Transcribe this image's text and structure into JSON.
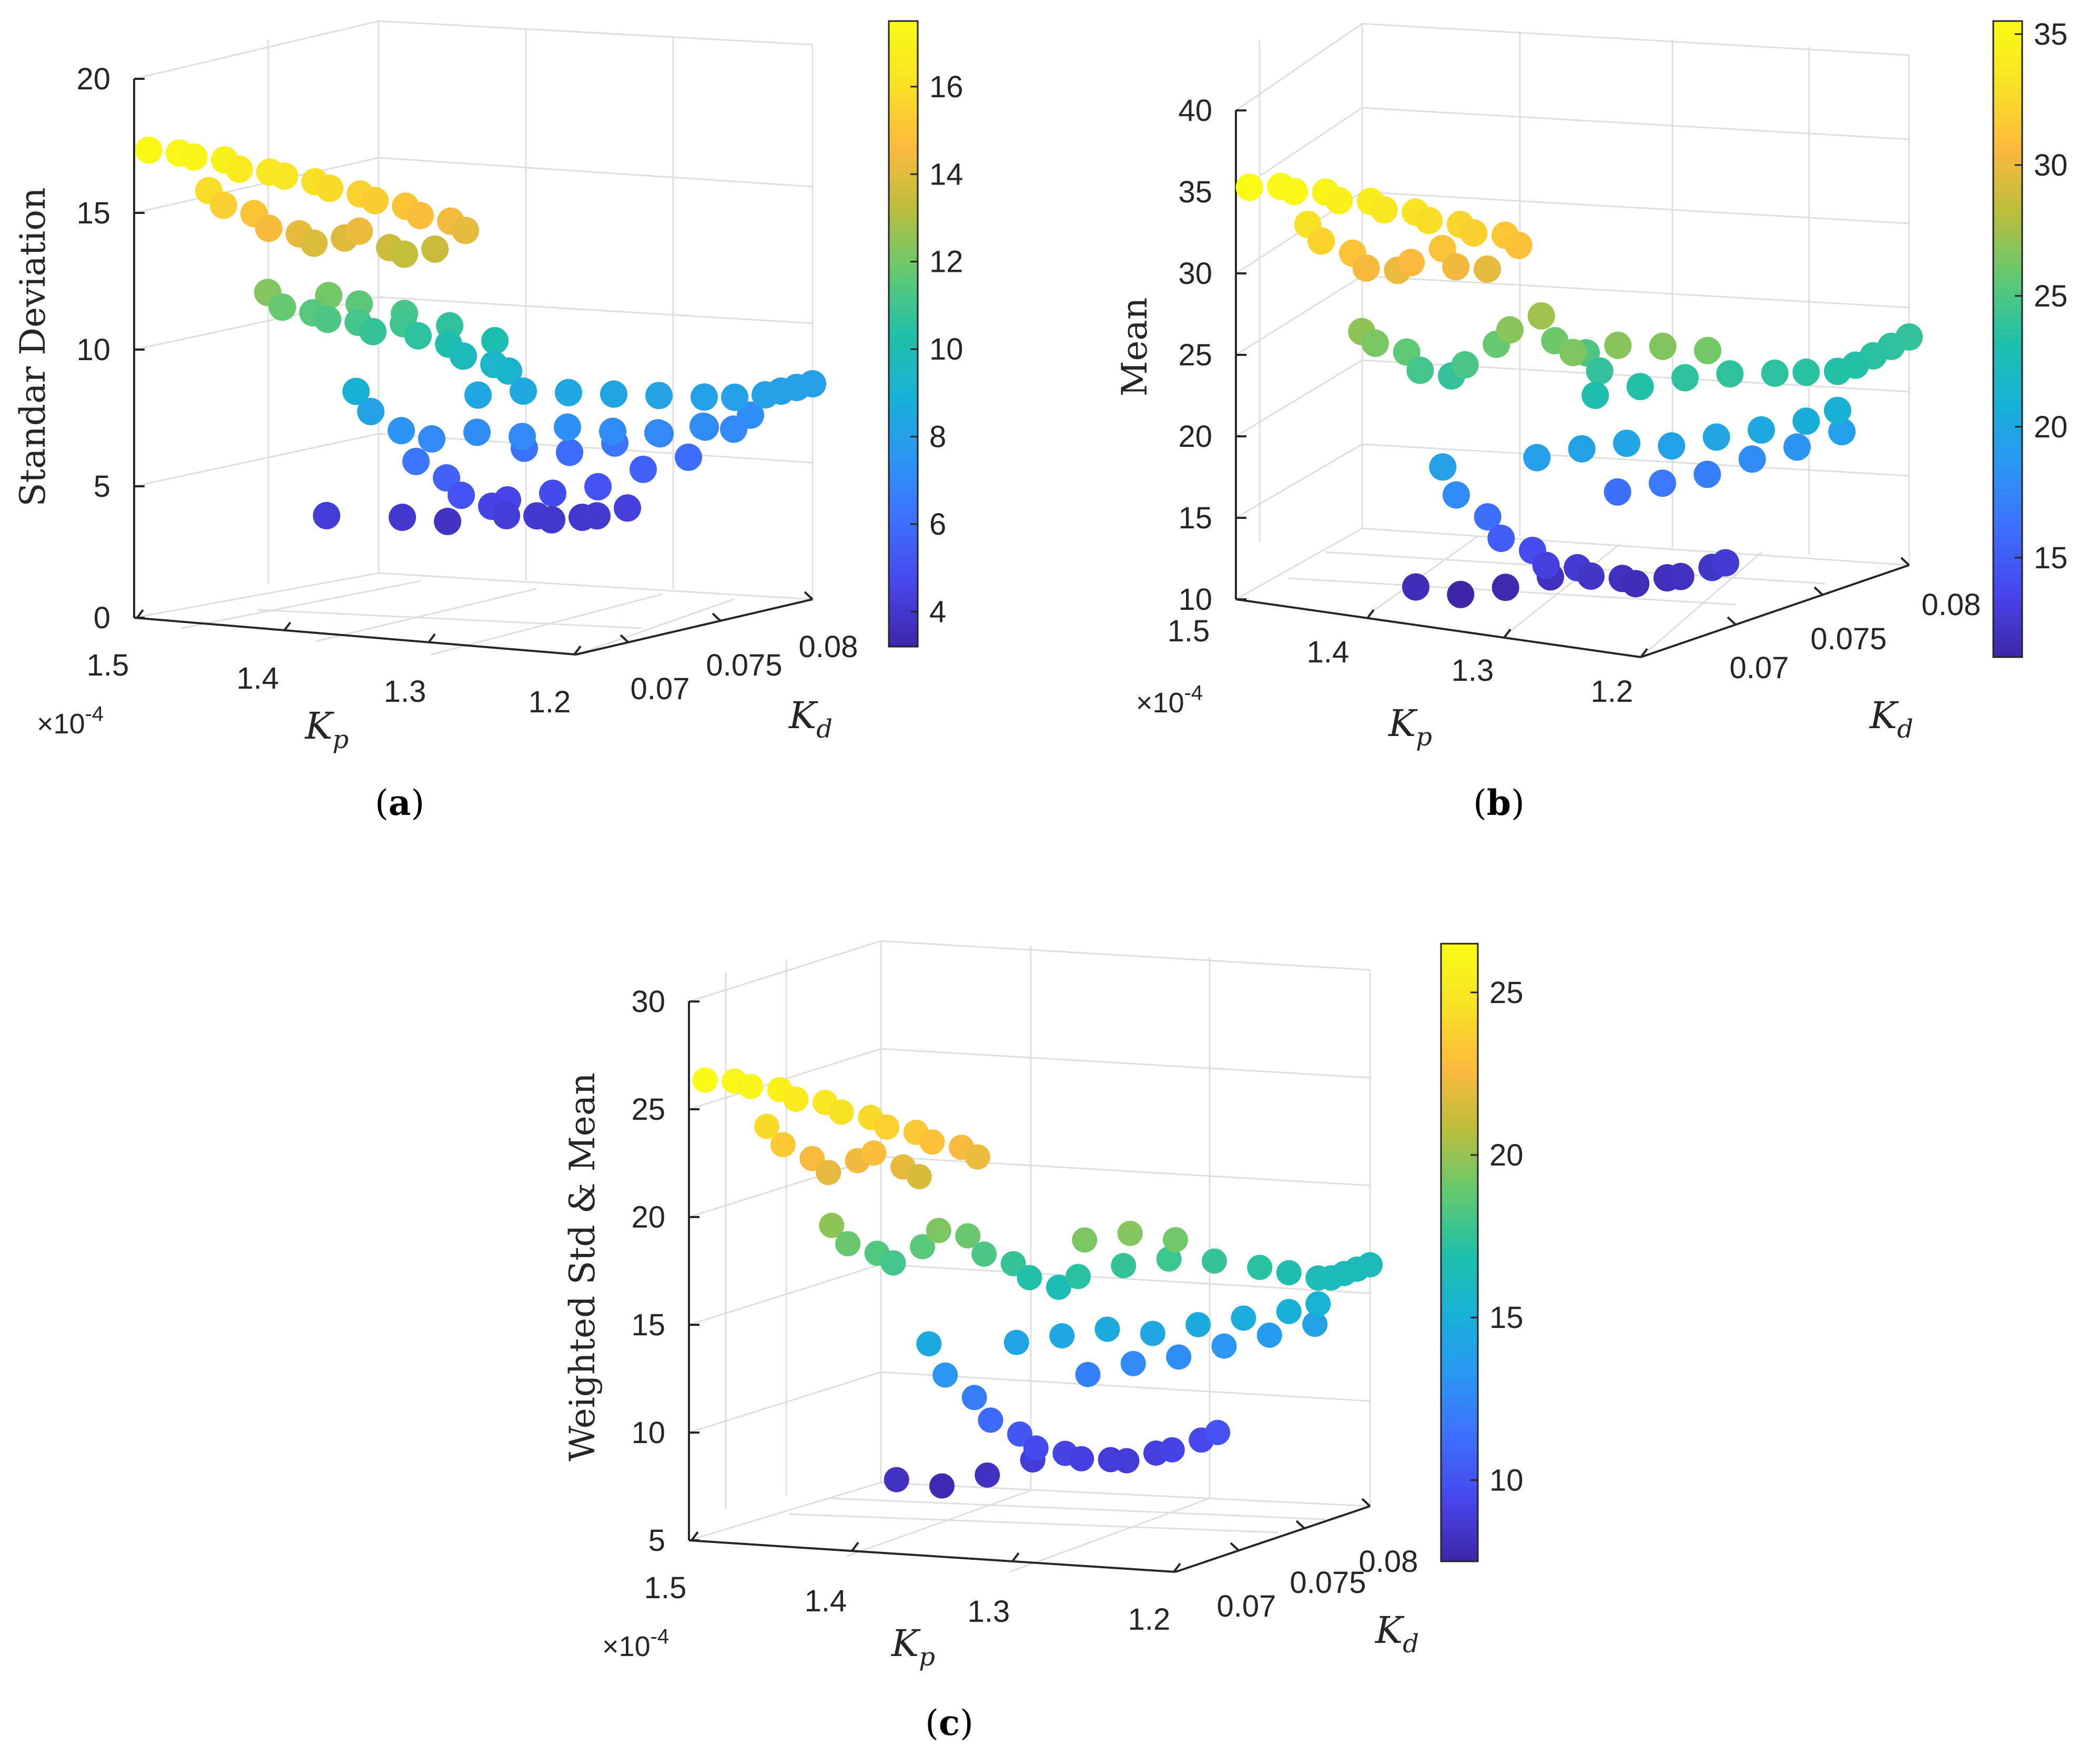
{
  "colors": {
    "axis": "#262626",
    "grid": "#dedede",
    "colormap": [
      "#3e26a8",
      "#4746eb",
      "#3e6ffe",
      "#2b96f4",
      "#18b1d6",
      "#21c0a8",
      "#64c970",
      "#bcbd3c",
      "#fcba3d",
      "#f9e224",
      "#f9fb15"
    ]
  },
  "chart_data": [
    {
      "type": "scatter3d",
      "id": "a",
      "caption": "a",
      "zlabel": "Standar Deviation",
      "xlabel": "K",
      "xsub": "p",
      "ylabel": "K",
      "ysub": "d",
      "x_multiplier": "×10",
      "x_multiplier_exp": "-4",
      "xlim": [
        1.2,
        1.5
      ],
      "ylim": [
        0.065,
        0.08
      ],
      "zlim": [
        0,
        20
      ],
      "xticks": [
        "1.5",
        "1.4",
        "1.3",
        "1.2"
      ],
      "yticks": [
        "0.07",
        "0.075",
        "0.08"
      ],
      "zticks": [
        "0",
        "5",
        "10",
        "15",
        "20"
      ],
      "colorbar_ticks": [
        "4",
        "6",
        "8",
        "10",
        "12",
        "14",
        "16"
      ],
      "clim": [
        3.2,
        17.5
      ],
      "points": [
        [
          1.49,
          0.065,
          17.4
        ],
        [
          1.48,
          0.066,
          17.2
        ],
        [
          1.47,
          0.066,
          17.1
        ],
        [
          1.46,
          0.067,
          16.9
        ],
        [
          1.45,
          0.067,
          16.6
        ],
        [
          1.44,
          0.068,
          16.4
        ],
        [
          1.43,
          0.068,
          16.3
        ],
        [
          1.42,
          0.069,
          16.0
        ],
        [
          1.41,
          0.069,
          15.8
        ],
        [
          1.4,
          0.07,
          15.5
        ],
        [
          1.39,
          0.07,
          15.3
        ],
        [
          1.38,
          0.071,
          15.0
        ],
        [
          1.37,
          0.071,
          14.7
        ],
        [
          1.36,
          0.072,
          14.4
        ],
        [
          1.35,
          0.072,
          14.1
        ],
        [
          1.46,
          0.066,
          15.9
        ],
        [
          1.45,
          0.066,
          15.4
        ],
        [
          1.44,
          0.067,
          15.0
        ],
        [
          1.43,
          0.067,
          14.5
        ],
        [
          1.42,
          0.068,
          14.2
        ],
        [
          1.41,
          0.068,
          13.9
        ],
        [
          1.4,
          0.069,
          14.0
        ],
        [
          1.39,
          0.069,
          14.3
        ],
        [
          1.38,
          0.07,
          13.6
        ],
        [
          1.37,
          0.07,
          13.4
        ],
        [
          1.36,
          0.071,
          13.5
        ],
        [
          1.42,
          0.066,
          12.3
        ],
        [
          1.41,
          0.066,
          11.8
        ],
        [
          1.4,
          0.067,
          11.5
        ],
        [
          1.39,
          0.067,
          11.3
        ],
        [
          1.38,
          0.068,
          11.1
        ],
        [
          1.37,
          0.068,
          10.8
        ],
        [
          1.36,
          0.069,
          11.0
        ],
        [
          1.35,
          0.069,
          10.6
        ],
        [
          1.34,
          0.07,
          10.2
        ],
        [
          1.33,
          0.07,
          9.8
        ],
        [
          1.32,
          0.071,
          9.4
        ],
        [
          1.31,
          0.071,
          9.2
        ],
        [
          1.4,
          0.068,
          12.0
        ],
        [
          1.39,
          0.069,
          11.6
        ],
        [
          1.37,
          0.07,
          11.2
        ],
        [
          1.35,
          0.071,
          10.7
        ],
        [
          1.33,
          0.072,
          10.1
        ],
        [
          1.36,
          0.066,
          8.9
        ],
        [
          1.35,
          0.066,
          8.2
        ],
        [
          1.34,
          0.067,
          7.4
        ],
        [
          1.33,
          0.067,
          6.3
        ],
        [
          1.32,
          0.068,
          5.6
        ],
        [
          1.31,
          0.068,
          5.0
        ],
        [
          1.3,
          0.069,
          4.5
        ],
        [
          1.29,
          0.069,
          4.2
        ],
        [
          1.28,
          0.07,
          4.1
        ],
        [
          1.27,
          0.07,
          4.0
        ],
        [
          1.26,
          0.071,
          4.0
        ],
        [
          1.25,
          0.071,
          4.1
        ],
        [
          1.24,
          0.072,
          4.3
        ],
        [
          1.38,
          0.066,
          4.2
        ],
        [
          1.35,
          0.068,
          4.0
        ],
        [
          1.33,
          0.069,
          3.8
        ],
        [
          1.3,
          0.07,
          4.6
        ],
        [
          1.28,
          0.071,
          4.8
        ],
        [
          1.26,
          0.072,
          5.0
        ],
        [
          1.24,
          0.073,
          5.6
        ],
        [
          1.22,
          0.074,
          6.0
        ],
        [
          1.33,
          0.068,
          7.0
        ],
        [
          1.31,
          0.069,
          7.2
        ],
        [
          1.29,
          0.07,
          7.0
        ],
        [
          1.27,
          0.071,
          7.3
        ],
        [
          1.25,
          0.072,
          7.1
        ],
        [
          1.23,
          0.073,
          7.0
        ],
        [
          1.21,
          0.074,
          7.2
        ],
        [
          1.2,
          0.075,
          7.0
        ],
        [
          1.32,
          0.07,
          8.4
        ],
        [
          1.3,
          0.071,
          8.5
        ],
        [
          1.28,
          0.072,
          8.4
        ],
        [
          1.26,
          0.073,
          8.3
        ],
        [
          1.24,
          0.074,
          8.2
        ],
        [
          1.22,
          0.075,
          8.1
        ],
        [
          1.21,
          0.076,
          8.0
        ],
        [
          1.2,
          0.077,
          8.0
        ],
        [
          1.2,
          0.078,
          8.0
        ],
        [
          1.2,
          0.079,
          8.0
        ],
        [
          1.2,
          0.08,
          8.0
        ],
        [
          1.31,
          0.072,
          6.2
        ],
        [
          1.29,
          0.073,
          6.0
        ],
        [
          1.27,
          0.074,
          6.3
        ],
        [
          1.25,
          0.075,
          6.6
        ],
        [
          1.23,
          0.076,
          6.8
        ],
        [
          1.21,
          0.077,
          7.2
        ]
      ]
    },
    {
      "type": "scatter3d",
      "id": "b",
      "caption": "b",
      "zlabel": "Mean",
      "xlabel": "K",
      "xsub": "p",
      "ylabel": "K",
      "ysub": "d",
      "x_multiplier": "×10",
      "x_multiplier_exp": "-4",
      "xlim": [
        1.2,
        1.5
      ],
      "ylim": [
        0.065,
        0.08
      ],
      "zlim": [
        10,
        40
      ],
      "xticks": [
        "1.5",
        "1.4",
        "1.3",
        "1.2"
      ],
      "yticks": [
        "0.07",
        "0.075",
        "0.08"
      ],
      "zticks": [
        "10",
        "15",
        "20",
        "25",
        "30",
        "35",
        "40"
      ],
      "colorbar_ticks": [
        "15",
        "20",
        "25",
        "30",
        "35"
      ],
      "clim": [
        11.2,
        35.5
      ],
      "points": [
        [
          1.49,
          0.065,
          35.4
        ],
        [
          1.48,
          0.066,
          35.2
        ],
        [
          1.47,
          0.066,
          35.0
        ],
        [
          1.46,
          0.067,
          34.7
        ],
        [
          1.45,
          0.067,
          34.3
        ],
        [
          1.44,
          0.068,
          34.0
        ],
        [
          1.43,
          0.068,
          33.6
        ],
        [
          1.42,
          0.069,
          33.2
        ],
        [
          1.41,
          0.069,
          32.8
        ],
        [
          1.4,
          0.07,
          32.3
        ],
        [
          1.39,
          0.07,
          31.9
        ],
        [
          1.38,
          0.071,
          31.5
        ],
        [
          1.37,
          0.071,
          31.0
        ],
        [
          1.46,
          0.066,
          33.1
        ],
        [
          1.45,
          0.066,
          32.2
        ],
        [
          1.44,
          0.067,
          31.2
        ],
        [
          1.43,
          0.067,
          30.4
        ],
        [
          1.42,
          0.068,
          30.0
        ],
        [
          1.41,
          0.068,
          30.6
        ],
        [
          1.4,
          0.069,
          31.2
        ],
        [
          1.39,
          0.069,
          30.2
        ],
        [
          1.38,
          0.07,
          29.8
        ],
        [
          1.42,
          0.066,
          27.0
        ],
        [
          1.41,
          0.066,
          26.4
        ],
        [
          1.4,
          0.067,
          25.6
        ],
        [
          1.39,
          0.067,
          24.6
        ],
        [
          1.38,
          0.068,
          24.0
        ],
        [
          1.37,
          0.068,
          24.8
        ],
        [
          1.36,
          0.069,
          25.8
        ],
        [
          1.35,
          0.069,
          26.8
        ],
        [
          1.34,
          0.07,
          27.4
        ],
        [
          1.33,
          0.07,
          26.0
        ],
        [
          1.32,
          0.071,
          25.0
        ],
        [
          1.31,
          0.071,
          24.0
        ],
        [
          1.36,
          0.066,
          19.4
        ],
        [
          1.35,
          0.066,
          17.8
        ],
        [
          1.34,
          0.067,
          16.2
        ],
        [
          1.33,
          0.067,
          15.0
        ],
        [
          1.32,
          0.068,
          14.0
        ],
        [
          1.31,
          0.068,
          13.2
        ],
        [
          1.3,
          0.069,
          12.8
        ],
        [
          1.29,
          0.069,
          12.4
        ],
        [
          1.28,
          0.07,
          12.0
        ],
        [
          1.27,
          0.07,
          11.8
        ],
        [
          1.26,
          0.071,
          11.9
        ],
        [
          1.25,
          0.071,
          12.1
        ],
        [
          1.24,
          0.072,
          12.4
        ],
        [
          1.23,
          0.072,
          12.8
        ],
        [
          1.38,
          0.066,
          11.8
        ],
        [
          1.36,
          0.067,
          11.2
        ],
        [
          1.34,
          0.068,
          11.5
        ],
        [
          1.32,
          0.069,
          12.0
        ],
        [
          1.33,
          0.069,
          19.2
        ],
        [
          1.31,
          0.07,
          19.6
        ],
        [
          1.29,
          0.071,
          19.8
        ],
        [
          1.27,
          0.072,
          19.5
        ],
        [
          1.25,
          0.073,
          19.9
        ],
        [
          1.23,
          0.074,
          20.2
        ],
        [
          1.21,
          0.075,
          20.6
        ],
        [
          1.2,
          0.076,
          21.0
        ],
        [
          1.31,
          0.072,
          16.2
        ],
        [
          1.29,
          0.073,
          16.6
        ],
        [
          1.27,
          0.074,
          17.0
        ],
        [
          1.25,
          0.075,
          17.8
        ],
        [
          1.23,
          0.076,
          18.4
        ],
        [
          1.21,
          0.077,
          19.2
        ],
        [
          1.3,
          0.07,
          23.0
        ],
        [
          1.28,
          0.071,
          23.4
        ],
        [
          1.26,
          0.072,
          23.8
        ],
        [
          1.24,
          0.073,
          23.9
        ],
        [
          1.22,
          0.074,
          23.8
        ],
        [
          1.21,
          0.075,
          23.6
        ],
        [
          1.2,
          0.076,
          23.4
        ],
        [
          1.2,
          0.077,
          23.4
        ],
        [
          1.2,
          0.078,
          23.6
        ],
        [
          1.2,
          0.079,
          23.8
        ],
        [
          1.2,
          0.08,
          24.0
        ],
        [
          1.29,
          0.068,
          26.5
        ],
        [
          1.27,
          0.069,
          26.8
        ],
        [
          1.25,
          0.07,
          26.6
        ],
        [
          1.23,
          0.071,
          26.2
        ]
      ]
    },
    {
      "type": "scatter3d",
      "id": "c",
      "caption": "c",
      "zlabel": "Weighted Std & Mean",
      "xlabel": "K",
      "xsub": "p",
      "ylabel": "K",
      "ysub": "d",
      "x_multiplier": "×10",
      "x_multiplier_exp": "-4",
      "xlim": [
        1.2,
        1.5
      ],
      "ylim": [
        0.065,
        0.08
      ],
      "zlim": [
        5,
        30
      ],
      "xticks": [
        "1.5",
        "1.4",
        "1.3",
        "1.2"
      ],
      "yticks": [
        "0.07",
        "0.075",
        "0.08"
      ],
      "zticks": [
        "5",
        "10",
        "15",
        "20",
        "25",
        "30"
      ],
      "colorbar_ticks": [
        "10",
        "15",
        "20",
        "25"
      ],
      "clim": [
        7.5,
        26.5
      ],
      "points": [
        [
          1.49,
          0.065,
          26.4
        ],
        [
          1.48,
          0.066,
          26.2
        ],
        [
          1.47,
          0.066,
          26.0
        ],
        [
          1.46,
          0.067,
          25.7
        ],
        [
          1.45,
          0.067,
          25.3
        ],
        [
          1.44,
          0.068,
          25.0
        ],
        [
          1.43,
          0.068,
          24.6
        ],
        [
          1.42,
          0.069,
          24.2
        ],
        [
          1.41,
          0.069,
          23.8
        ],
        [
          1.4,
          0.07,
          23.4
        ],
        [
          1.39,
          0.07,
          23.0
        ],
        [
          1.38,
          0.071,
          22.6
        ],
        [
          1.37,
          0.071,
          22.2
        ],
        [
          1.46,
          0.066,
          24.2
        ],
        [
          1.45,
          0.066,
          23.4
        ],
        [
          1.44,
          0.067,
          22.6
        ],
        [
          1.43,
          0.067,
          22.0
        ],
        [
          1.42,
          0.068,
          22.4
        ],
        [
          1.41,
          0.068,
          22.8
        ],
        [
          1.4,
          0.069,
          22.0
        ],
        [
          1.39,
          0.069,
          21.6
        ],
        [
          1.42,
          0.066,
          19.8
        ],
        [
          1.41,
          0.066,
          19.0
        ],
        [
          1.4,
          0.067,
          18.4
        ],
        [
          1.39,
          0.067,
          18.0
        ],
        [
          1.38,
          0.068,
          18.6
        ],
        [
          1.37,
          0.068,
          19.4
        ],
        [
          1.36,
          0.069,
          19.0
        ],
        [
          1.35,
          0.069,
          18.2
        ],
        [
          1.34,
          0.07,
          17.6
        ],
        [
          1.33,
          0.07,
          17.0
        ],
        [
          1.32,
          0.071,
          16.4
        ],
        [
          1.36,
          0.066,
          14.6
        ],
        [
          1.35,
          0.066,
          13.2
        ],
        [
          1.34,
          0.067,
          12.0
        ],
        [
          1.33,
          0.067,
          11.0
        ],
        [
          1.32,
          0.068,
          10.2
        ],
        [
          1.31,
          0.068,
          9.6
        ],
        [
          1.3,
          0.069,
          9.2
        ],
        [
          1.29,
          0.069,
          9.0
        ],
        [
          1.28,
          0.07,
          8.8
        ],
        [
          1.27,
          0.07,
          8.8
        ],
        [
          1.26,
          0.071,
          9.0
        ],
        [
          1.25,
          0.071,
          9.2
        ],
        [
          1.24,
          0.072,
          9.5
        ],
        [
          1.23,
          0.072,
          9.9
        ],
        [
          1.38,
          0.066,
          8.2
        ],
        [
          1.36,
          0.067,
          7.8
        ],
        [
          1.34,
          0.068,
          8.2
        ],
        [
          1.32,
          0.069,
          8.8
        ],
        [
          1.33,
          0.069,
          14.2
        ],
        [
          1.31,
          0.07,
          14.4
        ],
        [
          1.29,
          0.071,
          14.6
        ],
        [
          1.27,
          0.072,
          14.3
        ],
        [
          1.25,
          0.073,
          14.6
        ],
        [
          1.23,
          0.074,
          14.8
        ],
        [
          1.21,
          0.075,
          15.0
        ],
        [
          1.2,
          0.076,
          15.2
        ],
        [
          1.31,
          0.072,
          12.2
        ],
        [
          1.29,
          0.073,
          12.6
        ],
        [
          1.27,
          0.074,
          12.8
        ],
        [
          1.25,
          0.075,
          13.2
        ],
        [
          1.23,
          0.076,
          13.6
        ],
        [
          1.21,
          0.077,
          14.0
        ],
        [
          1.3,
          0.07,
          17.2
        ],
        [
          1.28,
          0.071,
          17.6
        ],
        [
          1.26,
          0.072,
          17.8
        ],
        [
          1.24,
          0.073,
          17.6
        ],
        [
          1.22,
          0.074,
          17.2
        ],
        [
          1.21,
          0.075,
          16.8
        ],
        [
          1.2,
          0.076,
          16.4
        ],
        [
          1.2,
          0.077,
          16.2
        ],
        [
          1.2,
          0.078,
          16.2
        ],
        [
          1.2,
          0.079,
          16.2
        ],
        [
          1.2,
          0.08,
          16.2
        ],
        [
          1.28,
          0.068,
          19.4
        ],
        [
          1.26,
          0.069,
          19.6
        ],
        [
          1.24,
          0.07,
          19.2
        ]
      ]
    }
  ]
}
